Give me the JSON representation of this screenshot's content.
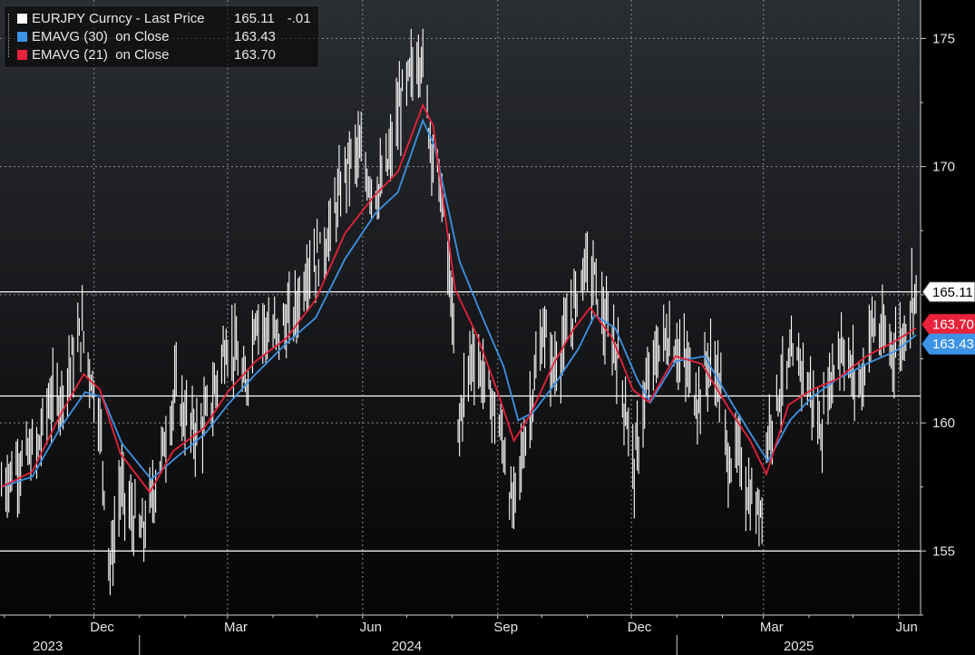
{
  "legend": {
    "rows": [
      {
        "label": "EURJPY Curncy - Last Price",
        "value": "165.11",
        "change": "-.01",
        "color": "#ffffff"
      },
      {
        "label": "EMAVG (30)  on Close",
        "value": "163.43",
        "color": "#3d93e6"
      },
      {
        "label": "EMAVG (21)  on Close",
        "value": "163.70",
        "color": "#e8233b"
      }
    ]
  },
  "chart_data": {
    "type": "line",
    "y_ticks": [
      "155",
      "160",
      "165",
      "170",
      "175"
    ],
    "ylim": [
      152.5,
      176.5
    ],
    "x_month_labels": [
      "Dec",
      "Mar",
      "Jun",
      "Sep",
      "Dec",
      "Mar",
      "Jun"
    ],
    "x_year_labels": [
      "2023",
      "2024",
      "2025"
    ],
    "reference_lines": [
      165.11,
      161.05,
      155.0
    ],
    "tags": [
      {
        "text": "165.11",
        "value": 165.11,
        "bg": "#ffffff",
        "fg": "#000000"
      },
      {
        "text": "163.70",
        "value": 163.7,
        "bg": "#e8233b",
        "fg": "#ffffff"
      },
      {
        "text": "163.43",
        "value": 163.43,
        "bg": "#3d93e6",
        "fg": "#ffffff"
      }
    ],
    "series": [
      {
        "name": "EURJPY Curncy - Last Price",
        "color": "#ffffff",
        "anchors": [
          [
            "2023-09-29",
            157.5
          ],
          [
            "2023-10-10",
            158.4
          ],
          [
            "2023-10-24",
            159.0
          ],
          [
            "2023-10-31",
            160.8
          ],
          [
            "2023-11-08",
            161.0
          ],
          [
            "2023-11-16",
            162.4
          ],
          [
            "2023-11-23",
            163.6
          ],
          [
            "2023-11-28",
            162.2
          ],
          [
            "2023-12-05",
            160.0
          ],
          [
            "2023-12-12",
            154.3
          ],
          [
            "2023-12-19",
            157.5
          ],
          [
            "2023-12-26",
            156.4
          ],
          [
            "2024-01-03",
            155.6
          ],
          [
            "2024-01-10",
            157.2
          ],
          [
            "2024-01-19",
            159.5
          ],
          [
            "2024-01-26",
            161.3
          ],
          [
            "2024-02-01",
            160.2
          ],
          [
            "2024-02-08",
            159.7
          ],
          [
            "2024-02-14",
            160.0
          ],
          [
            "2024-02-20",
            161.0
          ],
          [
            "2024-02-29",
            163.2
          ],
          [
            "2024-03-07",
            162.6
          ],
          [
            "2024-03-13",
            161.2
          ],
          [
            "2024-03-20",
            164.3
          ],
          [
            "2024-03-27",
            163.6
          ],
          [
            "2024-04-03",
            163.4
          ],
          [
            "2024-04-10",
            163.9
          ],
          [
            "2024-04-16",
            164.3
          ],
          [
            "2024-04-25",
            166.2
          ],
          [
            "2024-05-01",
            166.4
          ],
          [
            "2024-05-08",
            167.2
          ],
          [
            "2024-05-15",
            168.6
          ],
          [
            "2024-05-22",
            170.2
          ],
          [
            "2024-05-29",
            170.5
          ],
          [
            "2024-06-05",
            169.5
          ],
          [
            "2024-06-12",
            169.0
          ],
          [
            "2024-06-19",
            170.2
          ],
          [
            "2024-06-26",
            172.3
          ],
          [
            "2024-07-03",
            173.5
          ],
          [
            "2024-07-11",
            174.5
          ],
          [
            "2024-07-16",
            171.6
          ],
          [
            "2024-07-24",
            169.1
          ],
          [
            "2024-07-31",
            165.2
          ],
          [
            "2024-08-05",
            159.6
          ],
          [
            "2024-08-09",
            161.2
          ],
          [
            "2024-08-15",
            162.8
          ],
          [
            "2024-08-22",
            161.8
          ],
          [
            "2024-08-29",
            160.6
          ],
          [
            "2024-09-05",
            159.1
          ],
          [
            "2024-09-11",
            156.5
          ],
          [
            "2024-09-18",
            158.9
          ],
          [
            "2024-09-25",
            161.2
          ],
          [
            "2024-10-02",
            163.6
          ],
          [
            "2024-10-09",
            162.1
          ],
          [
            "2024-10-16",
            163.0
          ],
          [
            "2024-10-23",
            164.6
          ],
          [
            "2024-10-30",
            166.2
          ],
          [
            "2024-11-06",
            165.6
          ],
          [
            "2024-11-13",
            163.8
          ],
          [
            "2024-11-20",
            163.0
          ],
          [
            "2024-11-27",
            160.6
          ],
          [
            "2024-12-03",
            158.2
          ],
          [
            "2024-12-10",
            160.9
          ],
          [
            "2024-12-17",
            162.5
          ],
          [
            "2024-12-24",
            163.3
          ],
          [
            "2024-12-31",
            163.0
          ],
          [
            "2025-01-08",
            162.1
          ],
          [
            "2025-01-15",
            160.9
          ],
          [
            "2025-01-22",
            162.3
          ],
          [
            "2025-01-29",
            161.9
          ],
          [
            "2025-02-05",
            158.5
          ],
          [
            "2025-02-12",
            158.8
          ],
          [
            "2025-02-19",
            157.1
          ],
          [
            "2025-02-26",
            156.4
          ],
          [
            "2025-03-05",
            159.9
          ],
          [
            "2025-03-12",
            161.3
          ],
          [
            "2025-03-19",
            162.2
          ],
          [
            "2025-03-26",
            162.4
          ],
          [
            "2025-04-02",
            161.2
          ],
          [
            "2025-04-09",
            159.6
          ],
          [
            "2025-04-16",
            161.8
          ],
          [
            "2025-04-23",
            163.2
          ],
          [
            "2025-04-30",
            161.9
          ],
          [
            "2025-05-07",
            161.6
          ],
          [
            "2025-05-14",
            163.9
          ],
          [
            "2025-05-21",
            163.3
          ],
          [
            "2025-05-28",
            162.9
          ],
          [
            "2025-06-04",
            163.3
          ],
          [
            "2025-06-10",
            165.0
          ],
          [
            "2025-06-13",
            165.11
          ]
        ]
      },
      {
        "name": "EMAVG (30)  on Close",
        "color": "#3d93e6",
        "anchors": [
          [
            "2023-09-29",
            157.5
          ],
          [
            "2023-10-20",
            157.9
          ],
          [
            "2023-11-08",
            159.8
          ],
          [
            "2023-11-25",
            161.2
          ],
          [
            "2023-12-07",
            161.0
          ],
          [
            "2023-12-20",
            159.2
          ],
          [
            "2024-01-09",
            157.8
          ],
          [
            "2024-01-25",
            158.6
          ],
          [
            "2024-02-15",
            159.6
          ],
          [
            "2024-03-01",
            160.7
          ],
          [
            "2024-03-20",
            161.9
          ],
          [
            "2024-04-10",
            163.1
          ],
          [
            "2024-04-30",
            164.1
          ],
          [
            "2024-05-20",
            166.4
          ],
          [
            "2024-06-10",
            168.2
          ],
          [
            "2024-06-25",
            169.0
          ],
          [
            "2024-07-12",
            171.8
          ],
          [
            "2024-07-20",
            170.8
          ],
          [
            "2024-08-06",
            166.3
          ],
          [
            "2024-08-21",
            164.2
          ],
          [
            "2024-09-05",
            162.2
          ],
          [
            "2024-09-15",
            160.1
          ],
          [
            "2024-09-25",
            160.4
          ],
          [
            "2024-10-11",
            161.6
          ],
          [
            "2024-10-26",
            162.9
          ],
          [
            "2024-11-06",
            164.2
          ],
          [
            "2024-11-20",
            163.7
          ],
          [
            "2024-12-05",
            161.7
          ],
          [
            "2024-12-14",
            160.8
          ],
          [
            "2024-12-31",
            162.4
          ],
          [
            "2025-01-20",
            162.6
          ],
          [
            "2025-02-05",
            161.0
          ],
          [
            "2025-02-20",
            159.6
          ],
          [
            "2025-03-04",
            158.5
          ],
          [
            "2025-03-19",
            160.1
          ],
          [
            "2025-04-03",
            161.0
          ],
          [
            "2025-04-20",
            161.7
          ],
          [
            "2025-05-10",
            162.3
          ],
          [
            "2025-05-30",
            162.8
          ],
          [
            "2025-06-13",
            163.43
          ]
        ]
      },
      {
        "name": "EMAVG (21)  on Close",
        "color": "#e8233b",
        "anchors": [
          [
            "2023-09-29",
            157.5
          ],
          [
            "2023-10-20",
            158.1
          ],
          [
            "2023-11-08",
            160.3
          ],
          [
            "2023-11-24",
            161.9
          ],
          [
            "2023-12-05",
            161.3
          ],
          [
            "2023-12-19",
            158.8
          ],
          [
            "2024-01-08",
            157.3
          ],
          [
            "2024-01-24",
            158.9
          ],
          [
            "2024-02-14",
            159.8
          ],
          [
            "2024-03-01",
            161.2
          ],
          [
            "2024-03-20",
            162.4
          ],
          [
            "2024-04-10",
            163.3
          ],
          [
            "2024-04-30",
            164.8
          ],
          [
            "2024-05-20",
            167.4
          ],
          [
            "2024-06-08",
            168.8
          ],
          [
            "2024-06-25",
            169.8
          ],
          [
            "2024-07-12",
            172.4
          ],
          [
            "2024-07-19",
            171.6
          ],
          [
            "2024-08-03",
            165.2
          ],
          [
            "2024-08-18",
            163.4
          ],
          [
            "2024-09-01",
            161.2
          ],
          [
            "2024-09-12",
            159.3
          ],
          [
            "2024-09-23",
            160.3
          ],
          [
            "2024-10-09",
            162.3
          ],
          [
            "2024-10-22",
            163.6
          ],
          [
            "2024-11-03",
            164.5
          ],
          [
            "2024-11-18",
            163.3
          ],
          [
            "2024-12-02",
            161.3
          ],
          [
            "2024-12-13",
            160.8
          ],
          [
            "2024-12-31",
            162.6
          ],
          [
            "2025-01-18",
            162.3
          ],
          [
            "2025-02-05",
            160.6
          ],
          [
            "2025-02-20",
            159.3
          ],
          [
            "2025-03-03",
            158.0
          ],
          [
            "2025-03-18",
            160.7
          ],
          [
            "2025-04-03",
            161.3
          ],
          [
            "2025-04-20",
            161.7
          ],
          [
            "2025-05-10",
            162.6
          ],
          [
            "2025-05-30",
            163.2
          ],
          [
            "2025-06-13",
            163.7
          ]
        ]
      }
    ]
  }
}
